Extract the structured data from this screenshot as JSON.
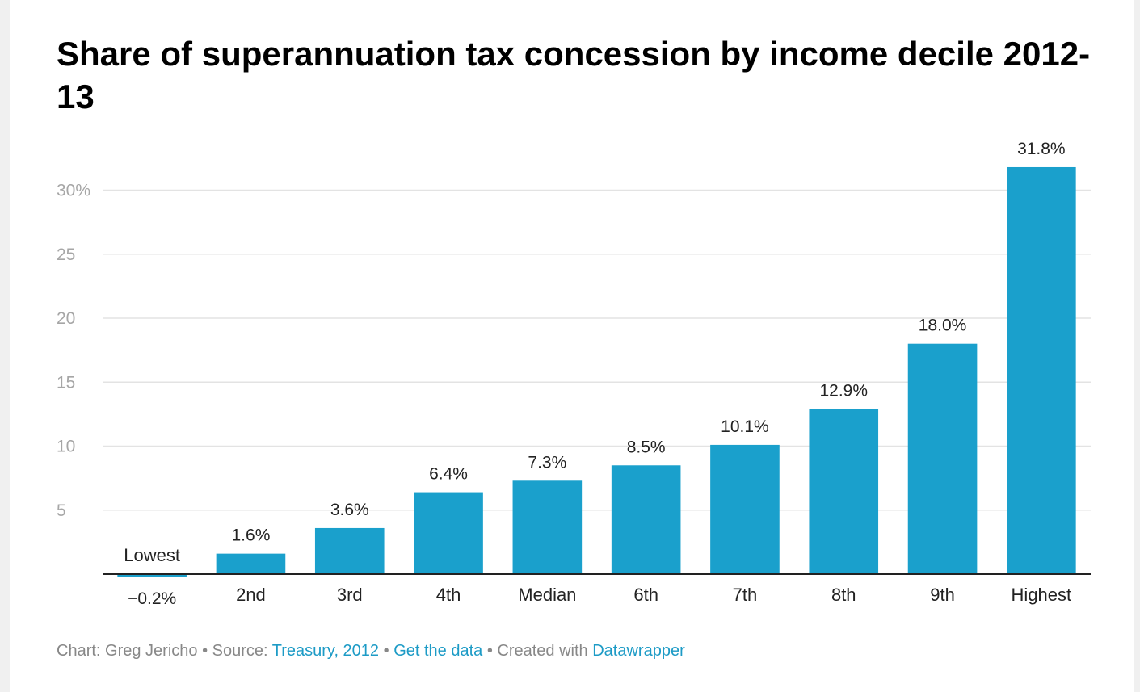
{
  "title": "Share of superannuation tax concession by income decile 2012-13",
  "chart_data": {
    "type": "bar",
    "title": "Share of superannuation tax concession by income decile 2012-13",
    "categories": [
      "Lowest",
      "2nd",
      "3rd",
      "4th",
      "Median",
      "6th",
      "7th",
      "8th",
      "9th",
      "Highest"
    ],
    "values": [
      -0.2,
      1.6,
      3.6,
      6.4,
      7.3,
      8.5,
      10.1,
      12.9,
      18.0,
      31.8
    ],
    "value_labels": [
      "−0.2%",
      "1.6%",
      "3.6%",
      "6.4%",
      "7.3%",
      "8.5%",
      "10.1%",
      "12.9%",
      "18.0%",
      "31.8%"
    ],
    "yticks": [
      5,
      10,
      15,
      20,
      25,
      30
    ],
    "ytick_labels": [
      "5",
      "10",
      "15",
      "20",
      "25",
      "30%"
    ],
    "ylim": [
      -0.2,
      31.8
    ],
    "xlabel": "",
    "ylabel": "",
    "grid": true,
    "colors": {
      "bar": "#1aa0cc",
      "grid": "#e3e3e3",
      "tick_label": "#a6a6a6",
      "axis": "#222222",
      "label": "#222222"
    }
  },
  "footer": {
    "chart_prefix": "Chart: Greg Jericho",
    "separator": " • ",
    "source_prefix": "Source: ",
    "source_link": "Treasury, 2012",
    "get_data": "Get the data",
    "created_prefix": "Created with ",
    "created_link": "Datawrapper",
    "link_color": "#1d9bc6"
  }
}
